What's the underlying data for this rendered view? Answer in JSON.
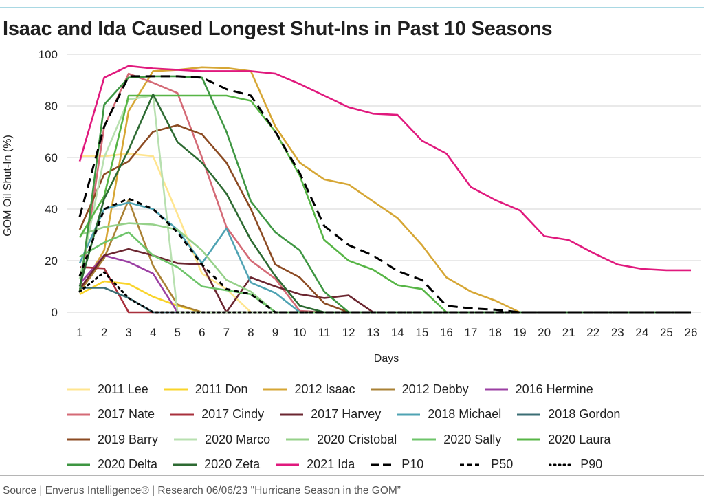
{
  "header": {
    "title": "Isaac and Ida Caused Longest Shut-Ins in Past 10 Seasons"
  },
  "footer": {
    "source": "Source | Enverus Intelligence® | Research 06/06/23 \"Hurricane Season in the GOM”"
  },
  "chart_data": {
    "type": "line",
    "title": "Isaac and Ida Caused Longest Shut-Ins in Past 10 Seasons",
    "xlabel": "Days",
    "ylabel": "GOM Oil Shut-In (%)",
    "x": [
      1,
      2,
      3,
      4,
      5,
      6,
      7,
      8,
      9,
      10,
      11,
      12,
      13,
      14,
      15,
      16,
      17,
      18,
      19,
      20,
      21,
      22,
      23,
      24,
      25,
      26
    ],
    "xlim": [
      1,
      26
    ],
    "ylim": [
      0,
      100
    ],
    "yticks": [
      0,
      20,
      40,
      60,
      80,
      100
    ],
    "grid": "horizontal",
    "legend_position": "bottom",
    "series": [
      {
        "name": "2011 Lee",
        "color": "#ffe58f",
        "dash": "solid",
        "values": [
          60.5,
          60.5,
          61.5,
          60.5,
          38,
          15,
          9,
          0,
          0,
          0,
          0,
          0,
          0,
          0,
          0,
          0,
          0,
          0,
          0,
          0,
          0,
          0,
          0,
          0,
          0,
          0
        ]
      },
      {
        "name": "2011 Don",
        "color": "#f9d42a",
        "dash": "solid",
        "values": [
          7,
          12,
          11,
          6,
          2.5,
          0,
          0,
          0,
          0,
          0,
          0,
          0,
          0,
          0,
          0,
          0,
          0,
          0,
          0,
          0,
          0,
          0,
          0,
          0,
          0,
          0
        ]
      },
      {
        "name": "2012 Isaac",
        "color": "#d6a634",
        "dash": "solid",
        "values": [
          8,
          24,
          78,
          93.5,
          94,
          95,
          94.7,
          93.5,
          72,
          58,
          51.5,
          49.5,
          43,
          36.5,
          26,
          13.5,
          8,
          4.5,
          0,
          0,
          0,
          0,
          0,
          0,
          0,
          0
        ]
      },
      {
        "name": "2012 Debby",
        "color": "#a98135",
        "dash": "solid",
        "values": [
          8,
          21,
          43.5,
          18,
          3,
          0,
          0,
          0,
          0,
          0,
          0,
          0,
          0,
          0,
          0,
          0,
          0,
          0,
          0,
          0,
          0,
          0,
          0,
          0,
          0,
          0
        ]
      },
      {
        "name": "2016 Hermine",
        "color": "#9b3fa3",
        "dash": "solid",
        "values": [
          11,
          22,
          19.5,
          15,
          0,
          0,
          0,
          0,
          0,
          0,
          0,
          0,
          0,
          0,
          0,
          0,
          0,
          0,
          0,
          0,
          0,
          0,
          0,
          0,
          0,
          0
        ]
      },
      {
        "name": "2017 Nate",
        "color": "#d46a76",
        "dash": "solid",
        "values": [
          8,
          72,
          92.5,
          89,
          85,
          60,
          33,
          20,
          13,
          0.5,
          0,
          0,
          0,
          0,
          0,
          0,
          0,
          0,
          0,
          0,
          0,
          0,
          0,
          0,
          0,
          0
        ]
      },
      {
        "name": "2017 Cindy",
        "color": "#a8303c",
        "dash": "solid",
        "values": [
          17.5,
          17,
          0,
          0,
          0,
          0,
          0,
          0,
          0,
          0,
          0,
          0,
          0,
          0,
          0,
          0,
          0,
          0,
          0,
          0,
          0,
          0,
          0,
          0,
          0,
          0
        ]
      },
      {
        "name": "2017 Harvey",
        "color": "#6b2630",
        "dash": "solid",
        "values": [
          9,
          22,
          24.5,
          22,
          19,
          18.5,
          0,
          13.5,
          10,
          7,
          5.5,
          6.5,
          0,
          0,
          0,
          0,
          0,
          0,
          0,
          0,
          0,
          0,
          0,
          0,
          0,
          0
        ]
      },
      {
        "name": "2018 Michael",
        "color": "#4fa3b3",
        "dash": "solid",
        "values": [
          19,
          40,
          42.5,
          40,
          32,
          19,
          32.5,
          11.5,
          7.5,
          0,
          0,
          0,
          0,
          0,
          0,
          0,
          0,
          0,
          0,
          0,
          0,
          0,
          0,
          0,
          0,
          0
        ]
      },
      {
        "name": "2018 Gordon",
        "color": "#3b6e74",
        "dash": "solid",
        "values": [
          9.5,
          9.5,
          5.5,
          0,
          0,
          0,
          0,
          0,
          0,
          0,
          0,
          0,
          0,
          0,
          0,
          0,
          0,
          0,
          0,
          0,
          0,
          0,
          0,
          0,
          0,
          0
        ]
      },
      {
        "name": "2019 Barry",
        "color": "#8b4a22",
        "dash": "solid",
        "values": [
          32,
          53.5,
          58.5,
          70,
          72.5,
          69,
          58,
          40,
          18.5,
          13.5,
          3.5,
          0,
          0,
          0,
          0,
          0,
          0,
          0,
          0,
          0,
          0,
          0,
          0,
          0,
          0,
          0
        ]
      },
      {
        "name": "2020 Marco",
        "color": "#b8e0b0",
        "dash": "solid",
        "values": [
          13,
          60,
          82.5,
          84,
          0,
          0,
          0,
          0,
          0,
          0,
          0,
          0,
          0,
          0,
          0,
          0,
          0,
          0,
          0,
          0,
          0,
          0,
          0,
          0,
          0,
          0
        ]
      },
      {
        "name": "2020 Cristobal",
        "color": "#96d18a",
        "dash": "solid",
        "values": [
          30,
          33,
          34.5,
          34,
          32,
          24,
          12.5,
          8,
          0,
          0,
          0,
          0,
          0,
          0,
          0,
          0,
          0,
          0,
          0,
          0,
          0,
          0,
          0,
          0,
          0,
          0
        ]
      },
      {
        "name": "2020 Sally",
        "color": "#6ec46a",
        "dash": "solid",
        "values": [
          21.5,
          27,
          31,
          22,
          17.5,
          10,
          8.5,
          7,
          0,
          0,
          0,
          0,
          0,
          0,
          0,
          0,
          0,
          0,
          0,
          0,
          0,
          0,
          0,
          0,
          0,
          0
        ]
      },
      {
        "name": "2020 Laura",
        "color": "#57b546",
        "dash": "solid",
        "values": [
          29,
          45,
          84,
          84,
          84,
          84,
          84,
          82,
          70,
          53,
          28,
          20,
          16.5,
          10.5,
          9,
          0,
          0,
          0,
          0,
          0,
          0,
          0,
          0,
          0,
          0,
          0
        ]
      },
      {
        "name": "2020 Delta",
        "color": "#3e9642",
        "dash": "solid",
        "values": [
          8,
          80.5,
          91,
          91.5,
          91.5,
          91,
          70,
          43,
          31,
          24,
          8,
          0,
          0,
          0,
          0,
          0,
          0,
          0,
          0,
          0,
          0,
          0,
          0,
          0,
          0,
          0
        ]
      },
      {
        "name": "2020 Zeta",
        "color": "#2d6a32",
        "dash": "solid",
        "values": [
          10,
          44,
          63,
          84.5,
          66,
          58,
          46,
          28,
          14,
          2.5,
          0,
          0,
          0,
          0,
          0,
          0,
          0,
          0,
          0,
          0,
          0,
          0,
          0,
          0,
          0,
          0
        ]
      },
      {
        "name": "2021 Ida",
        "color": "#e0197d",
        "dash": "solid",
        "values": [
          58.5,
          91,
          95.5,
          94.5,
          94,
          93.5,
          93.5,
          93.5,
          92.5,
          88.5,
          84,
          79.5,
          77,
          76.5,
          66.5,
          61.5,
          48.5,
          43.5,
          39.5,
          29.5,
          28,
          23,
          18.5,
          16.8,
          16.3,
          16.3
        ]
      },
      {
        "name": "P10",
        "color": "#000000",
        "dash": "long",
        "values": [
          37,
          72,
          91.5,
          91.5,
          91.5,
          91,
          86.5,
          84,
          70,
          54,
          33.5,
          26,
          22,
          16,
          12.5,
          2.5,
          1.5,
          1,
          0,
          0,
          0,
          0,
          0,
          0,
          0,
          0
        ]
      },
      {
        "name": "P50",
        "color": "#000000",
        "dash": "medium",
        "values": [
          14,
          40,
          44,
          40,
          31,
          18.5,
          9,
          7,
          0,
          0,
          0,
          0,
          0,
          0,
          0,
          0,
          0,
          0,
          0,
          0,
          0,
          0,
          0,
          0,
          0,
          0
        ]
      },
      {
        "name": "P90",
        "color": "#000000",
        "dash": "dotted",
        "values": [
          8,
          15.5,
          5.5,
          0,
          0,
          0,
          0,
          0,
          0,
          0,
          0,
          0,
          0,
          0,
          0,
          0,
          0,
          0,
          0,
          0,
          0,
          0,
          0,
          0,
          0,
          0
        ]
      }
    ],
    "legend_rows": [
      [
        "2011 Lee",
        "2011 Don",
        "2012 Isaac",
        "2012 Debby",
        "2016 Hermine"
      ],
      [
        "2017 Nate",
        "2017 Cindy",
        "2017 Harvey",
        "2018 Michael",
        "2018 Gordon"
      ],
      [
        "2019 Barry",
        "2020 Marco",
        "2020 Cristobal",
        "2020 Sally",
        "2020 Laura"
      ],
      [
        "2020 Delta",
        "2020 Zeta",
        "2021 Ida",
        "P10",
        "P50",
        "P90"
      ]
    ]
  }
}
